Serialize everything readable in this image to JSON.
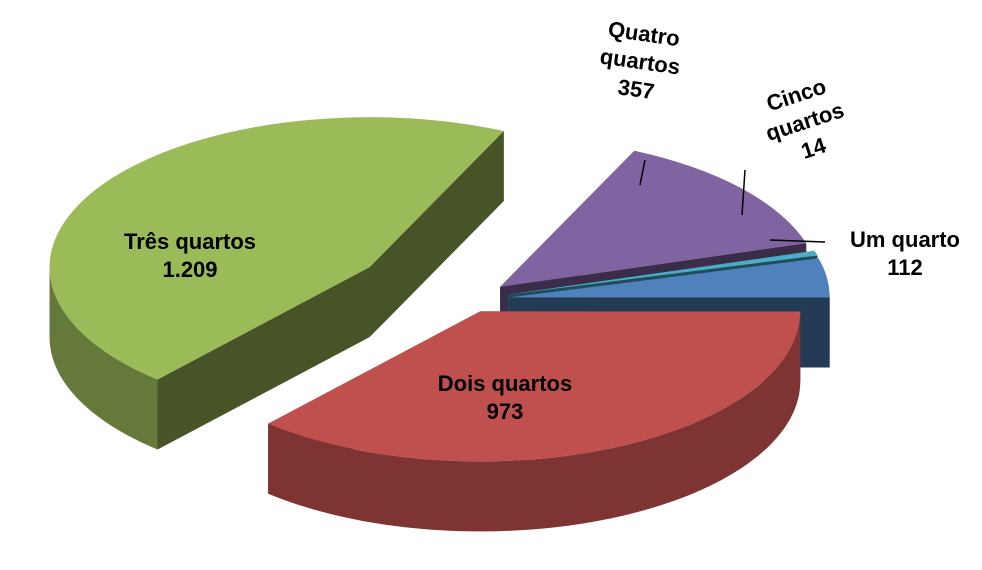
{
  "chart_data": {
    "type": "pie3d",
    "categories": [
      "Um quarto",
      "Dois quartos",
      "Três quartos",
      "Quatro quartos",
      "Cinco quartos"
    ],
    "values": [
      112,
      973,
      1209,
      357,
      14
    ],
    "value_labels": [
      "112",
      "973",
      "1.209",
      "357",
      "14"
    ],
    "colors": [
      "#4f81bd",
      "#c0504d",
      "#9bbb59",
      "#8064a2",
      "#4bacc6"
    ]
  }
}
